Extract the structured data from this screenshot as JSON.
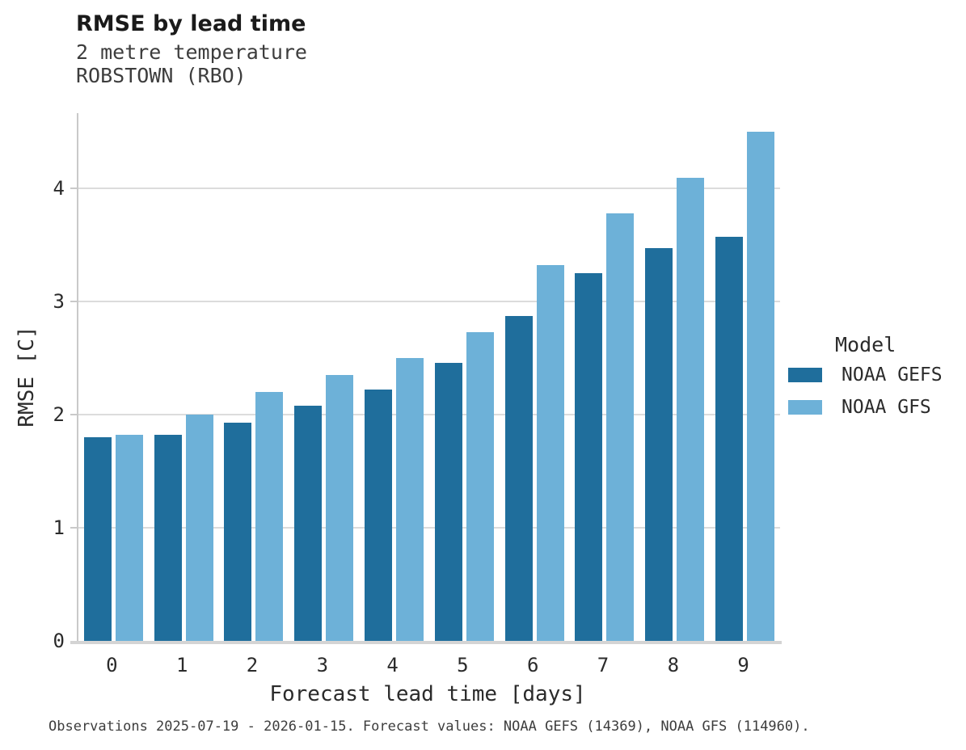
{
  "header": {
    "title": "RMSE by lead time",
    "subtitle_lines": [
      "2 metre temperature",
      "ROBSTOWN (RBO)"
    ]
  },
  "chart_data": {
    "type": "bar",
    "title": "RMSE by lead time",
    "subtitle": "2 metre temperature — ROBSTOWN (RBO)",
    "categories": [
      "0",
      "1",
      "2",
      "3",
      "4",
      "5",
      "6",
      "7",
      "8",
      "9"
    ],
    "series": [
      {
        "name": "NOAA GEFS",
        "color": "#1f6e9c",
        "values": [
          1.8,
          1.82,
          1.93,
          2.08,
          2.22,
          2.46,
          2.87,
          3.25,
          3.47,
          3.57
        ]
      },
      {
        "name": "NOAA GFS",
        "color": "#6db1d8",
        "values": [
          1.82,
          2.0,
          2.2,
          2.35,
          2.5,
          2.73,
          3.32,
          3.78,
          4.09,
          4.5
        ]
      }
    ],
    "xlabel": "Forecast lead time [days]",
    "ylabel": "RMSE [C]",
    "ylim": [
      0,
      4.66
    ],
    "yticks": [
      0,
      1,
      2,
      3,
      4
    ],
    "grid": "horizontal",
    "legend_title": "Model",
    "legend_position": "right"
  },
  "footer": {
    "note": "Observations 2025-07-19 - 2026-01-15. Forecast values: NOAA GEFS (14369), NOAA GFS (114960)."
  },
  "colors": {
    "gefs_bar": "#1f6e9c",
    "gfs_bar": "#6db1d8",
    "gridline": "#dcdcdc",
    "axis_spine": "#c9c9c9",
    "title_text": "#1a1a1a",
    "body_text": "#2b2b2b"
  }
}
